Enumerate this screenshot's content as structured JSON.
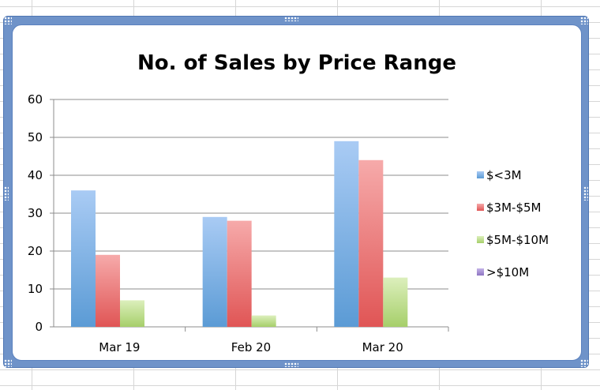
{
  "chart_data": {
    "type": "bar",
    "title": "No. of Sales by Price Range",
    "categories": [
      "Mar 19",
      "Feb 20",
      "Mar 20"
    ],
    "series": [
      {
        "name": "$<3M",
        "values": [
          36,
          29,
          49
        ],
        "color": "#5b9bd5",
        "light": "#a9cbf4"
      },
      {
        "name": "$3M-$5M",
        "values": [
          19,
          28,
          44
        ],
        "color": "#e05555",
        "light": "#f6aaaa"
      },
      {
        "name": "$5M-$10M",
        "values": [
          7,
          3,
          13
        ],
        "color": "#a6cf6a",
        "light": "#dcefbc"
      },
      {
        "name": ">$10M",
        "values": [
          0,
          0,
          0
        ],
        "color": "#8e74c2",
        "light": "#c4b3e8"
      }
    ],
    "ylim": [
      0,
      60
    ],
    "yticks": [
      0,
      10,
      20,
      30,
      40,
      50,
      60
    ],
    "grid": true,
    "legend": "right"
  }
}
